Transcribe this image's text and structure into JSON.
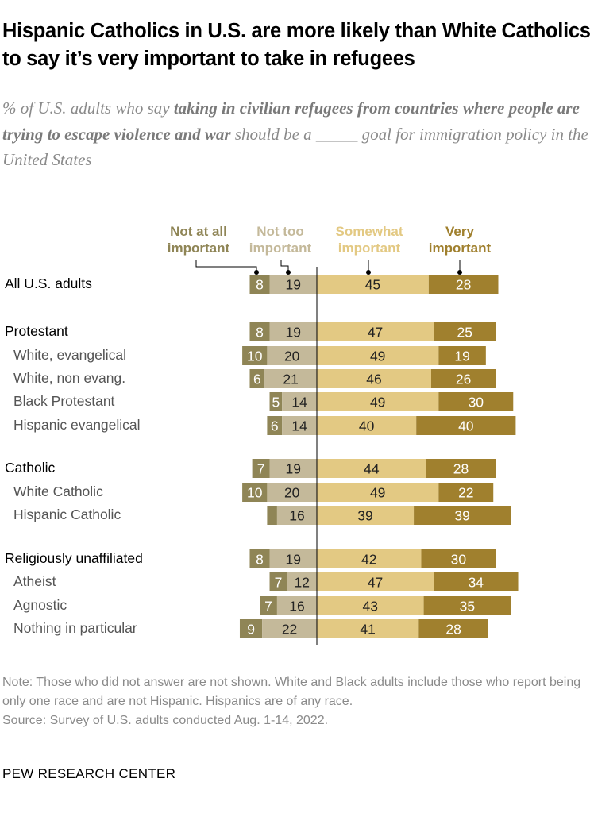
{
  "title": "Hispanic Catholics in U.S. are more likely than White Catholics to say it’s very important to take in refugees",
  "subtitle": {
    "pre": "% of U.S. adults who say ",
    "bold": "taking in civilian refugees from countries where people are trying to escape violence and war",
    "post": " should be a _____ goal for immigration policy in the United States"
  },
  "note": "Note: Those who did not answer are not shown. White and Black adults include those who report being only one race and are not Hispanic. Hispanics are of any race.",
  "source": "Source: Survey of U.S. adults conducted Aug. 1-14, 2022.",
  "logo": "PEW RESEARCH CENTER",
  "chart_data": {
    "type": "bar",
    "stacking": "diverging",
    "legend_labels": [
      "Not at all important",
      "Not too important",
      "Somewhat important",
      "Very important"
    ],
    "colors": {
      "not_at_all": "#8f8556",
      "not_too": "#c4b99a",
      "somewhat": "#e3c983",
      "very": "#a0802e"
    },
    "categories": [
      "All U.S. adults",
      "Protestant",
      "White, evangelical",
      "White, non evang.",
      "Black Protestant",
      "Hispanic evangelical",
      "Catholic",
      "White Catholic",
      "Hispanic Catholic",
      "Religiously unaffiliated",
      "Atheist",
      "Agnostic",
      "Nothing in particular"
    ],
    "indent": [
      false,
      false,
      true,
      true,
      true,
      true,
      false,
      true,
      true,
      false,
      true,
      true,
      true
    ],
    "series": [
      {
        "name": "Not at all important",
        "values": [
          8,
          8,
          10,
          6,
          5,
          6,
          7,
          10,
          4,
          8,
          7,
          7,
          9
        ],
        "labels": [
          "8",
          "8",
          "10",
          "6",
          "5",
          "6",
          "7",
          "10",
          "",
          "8",
          "7",
          "7",
          "9"
        ]
      },
      {
        "name": "Not too important",
        "values": [
          19,
          19,
          20,
          21,
          14,
          14,
          19,
          20,
          16,
          19,
          12,
          16,
          22
        ],
        "labels": [
          "19",
          "19",
          "20",
          "21",
          "14",
          "14",
          "19",
          "20",
          "16",
          "19",
          "12",
          "16",
          "22"
        ]
      },
      {
        "name": "Somewhat important",
        "values": [
          45,
          47,
          49,
          46,
          49,
          40,
          44,
          49,
          39,
          42,
          47,
          43,
          41
        ],
        "labels": [
          "45",
          "47",
          "49",
          "46",
          "49",
          "40",
          "44",
          "49",
          "39",
          "42",
          "47",
          "43",
          "41"
        ]
      },
      {
        "name": "Very important",
        "values": [
          28,
          25,
          19,
          26,
          30,
          40,
          28,
          22,
          39,
          30,
          34,
          35,
          28
        ],
        "labels": [
          "28",
          "25",
          "19",
          "26",
          "30",
          "40",
          "28",
          "22",
          "39",
          "30",
          "34",
          "35",
          "28"
        ]
      }
    ]
  }
}
